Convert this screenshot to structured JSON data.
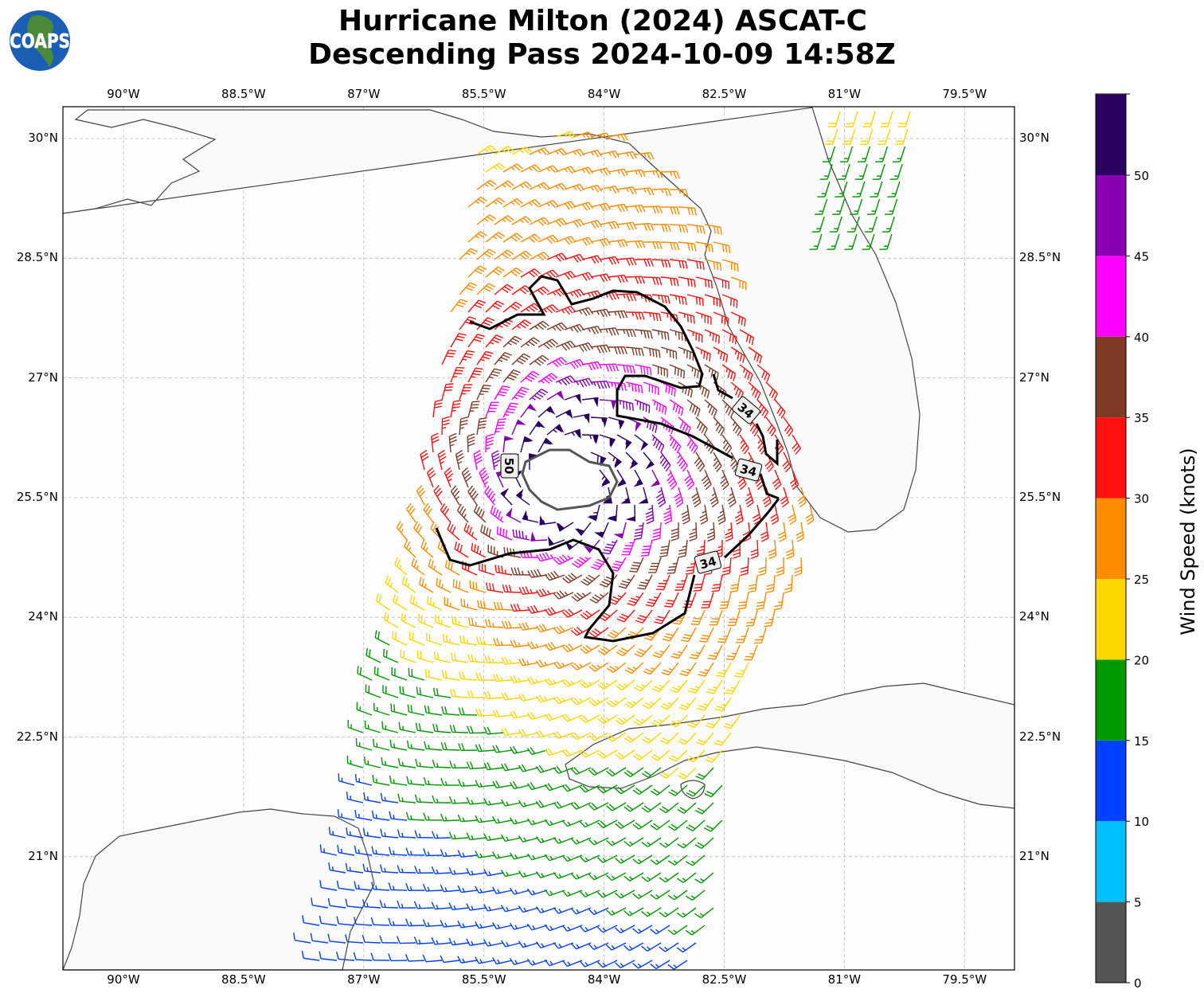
{
  "title": {
    "line1": "Hurricane Milton (2024) ASCAT-C",
    "line2": "Descending Pass 2024-10-09 14:58Z"
  },
  "logo": {
    "text": "COAPS"
  },
  "map": {
    "longitude_labels": [
      "90°W",
      "88.5°W",
      "87°W",
      "85.5°W",
      "84°W",
      "82.5°W",
      "81°W",
      "79.5°W"
    ],
    "latitude_labels": [
      "30°N",
      "28.5°N",
      "27°N",
      "25.5°N",
      "24°N",
      "22.5°N",
      "21°N"
    ],
    "contour_labels": [
      "34",
      "34",
      "34",
      "50"
    ],
    "contour_levels_knots": [
      34,
      50
    ],
    "storm_center": {
      "lat": 25.7,
      "lon": -84.5
    }
  },
  "colorbar": {
    "label": "Wind Speed (knots)",
    "ticks": [
      "0",
      "5",
      "10",
      "15",
      "20",
      "25",
      "30",
      "35",
      "40",
      "45",
      "50"
    ],
    "colors": [
      "#555555",
      "#00bfff",
      "#0040ff",
      "#009900",
      "#ffd700",
      "#ff8c00",
      "#ff1010",
      "#7f3a26",
      "#ff00ff",
      "#8800b0",
      "#2a0060"
    ]
  }
}
